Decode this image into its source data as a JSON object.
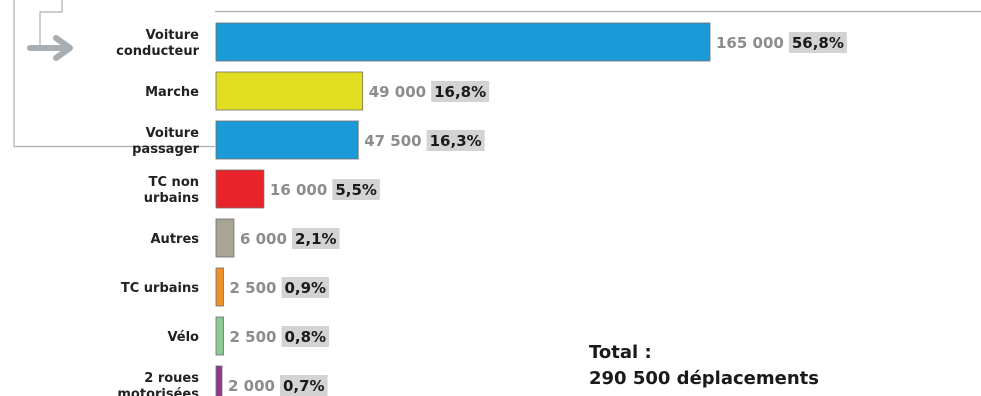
{
  "chart_data": {
    "type": "bar",
    "orientation": "horizontal",
    "categories": [
      [
        "Voiture",
        "conducteur"
      ],
      [
        "Marche"
      ],
      [
        "Voiture",
        "passager"
      ],
      [
        "TC non",
        "urbains"
      ],
      [
        "Autres"
      ],
      [
        "TC urbains"
      ],
      [
        "Vélo"
      ],
      [
        "2 roues",
        "motorisées"
      ]
    ],
    "values": [
      165000,
      49000,
      47500,
      16000,
      6000,
      2500,
      2500,
      2000
    ],
    "value_labels": [
      "165 000",
      "49 000",
      "47 500",
      "16 000",
      "6 000",
      "2 500",
      "2 500",
      "2 000"
    ],
    "percent_labels": [
      "56,8%",
      "16,8%",
      "16,3%",
      "5,5%",
      "2,1%",
      "0,9%",
      "0,8%",
      "0,7%"
    ],
    "colors": [
      "#1a9ad6",
      "#e1de22",
      "#1a9ad6",
      "#e8232a",
      "#a8a593",
      "#f0902a",
      "#8dc895",
      "#8b3a8f"
    ],
    "title": "",
    "xlabel": "",
    "ylabel": "",
    "legend": "none",
    "grid": false
  },
  "total": {
    "line1": "Total :",
    "line2": "290 500 déplacements"
  }
}
